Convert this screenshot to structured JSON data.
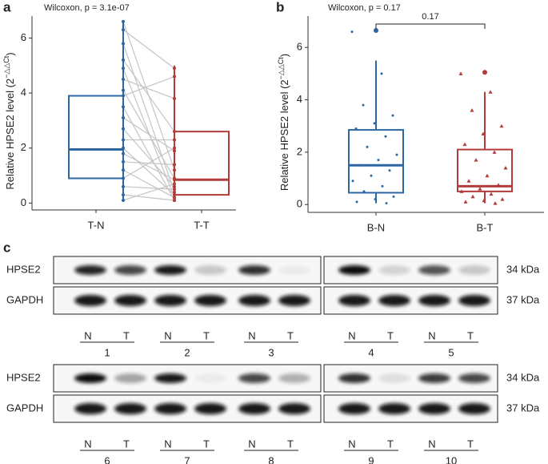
{
  "chart_data": [
    {
      "type": "box",
      "panel_label": "a",
      "annotation": "Wilcoxon, p = 3.1e-07",
      "ylabel": "Relative HPSE2 level (2",
      "ylabel_sup": "−△△Ct",
      "ylabel_end": ")",
      "categories": [
        "T-N",
        "T-T"
      ],
      "paired": true,
      "ylim": [
        -0.25,
        6.8
      ],
      "yticks": [
        0,
        2,
        4,
        6
      ],
      "boxes": [
        {
          "color": "#2c67a3",
          "q1": 0.9,
          "median": 1.95,
          "q3": 3.9,
          "low": 0.05,
          "high": 6.6,
          "outliers": [],
          "points": [
            6.6,
            6.3,
            5.8,
            5.2,
            4.9,
            4.5,
            4.1,
            3.9,
            3.5,
            3.1,
            2.7,
            2.3,
            2.0,
            1.8,
            1.5,
            1.2,
            0.9,
            0.6,
            0.3,
            0.1
          ]
        },
        {
          "color": "#b23b3b",
          "q1": 0.3,
          "median": 0.85,
          "q3": 2.6,
          "low": 0.05,
          "high": 5.0,
          "outliers": [],
          "points": [
            1.2,
            4.9,
            0.4,
            2.6,
            0.2,
            3.8,
            0.9,
            4.6,
            0.1,
            1.9,
            0.6,
            2.3,
            0.3,
            0.85,
            1.4,
            0.2,
            2.0,
            0.5,
            0.1,
            0.7
          ]
        }
      ]
    },
    {
      "type": "box",
      "panel_label": "b",
      "annotation": "Wilcoxon, p = 0.17",
      "bracket_label": "0.17",
      "ylabel": "Relative HPSE2 level (2",
      "ylabel_sup": "−△△Ct",
      "ylabel_end": ")",
      "categories": [
        "B-N",
        "B-T"
      ],
      "paired": false,
      "ylim": [
        -0.3,
        7.2
      ],
      "yticks": [
        0,
        2,
        4,
        6
      ],
      "boxes": [
        {
          "color": "#2c67a3",
          "q1": 0.45,
          "median": 1.5,
          "q3": 2.85,
          "low": 0.05,
          "high": 5.5,
          "outliers": [
            6.65
          ],
          "points": [
            6.6,
            5.0,
            3.8,
            3.4,
            3.1,
            2.9,
            2.6,
            2.2,
            1.9,
            1.7,
            1.5,
            1.3,
            1.1,
            0.9,
            0.7,
            0.5,
            0.3,
            0.2,
            0.1,
            0.05
          ]
        },
        {
          "color": "#b23b3b",
          "q1": 0.5,
          "median": 0.7,
          "q3": 2.1,
          "low": 0.05,
          "high": 4.3,
          "outliers": [
            5.05
          ],
          "points": [
            5.0,
            4.3,
            3.6,
            3.0,
            2.7,
            2.3,
            2.0,
            1.7,
            1.4,
            1.1,
            0.9,
            0.75,
            0.6,
            0.5,
            0.4,
            0.3,
            0.2,
            0.15,
            0.1,
            0.05
          ]
        }
      ]
    }
  ],
  "blot": {
    "panel_label": "c",
    "rows": [
      "HPSE2",
      "GAPDH"
    ],
    "sizes": [
      "34 kDa",
      "37 kDa"
    ],
    "lane_labels": [
      "N",
      "T"
    ],
    "groups": [
      [
        "1",
        "2",
        "3",
        "4",
        "5"
      ],
      [
        "6",
        "7",
        "8",
        "9",
        "10"
      ]
    ],
    "hpse2_intensity": [
      [
        0.9,
        0.75,
        0.95,
        0.2,
        0.85,
        0.05,
        1.0,
        0.15,
        0.7,
        0.2
      ],
      [
        1.0,
        0.35,
        0.95,
        0.05,
        0.75,
        0.3,
        0.85,
        0.1,
        0.8,
        0.75
      ]
    ],
    "gapdh_intensity": [
      [
        0.95,
        0.95,
        0.95,
        0.95,
        0.95,
        0.95,
        0.95,
        0.95,
        0.95,
        0.95
      ],
      [
        0.95,
        0.95,
        0.95,
        0.95,
        0.95,
        0.95,
        0.95,
        0.95,
        0.95,
        0.95
      ]
    ]
  }
}
